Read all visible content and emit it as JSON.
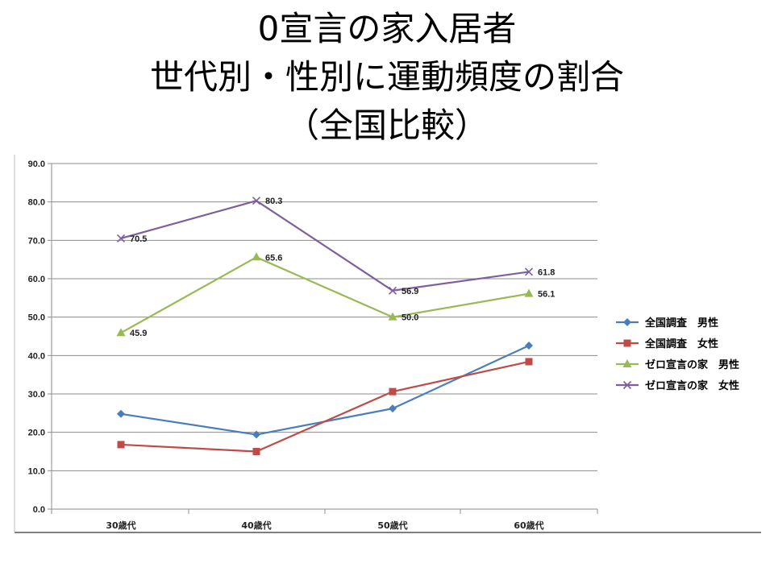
{
  "slide": {
    "title_lines": [
      "0宣言の家入居者",
      "世代別・性別に運動頻度の割合",
      "（全国比較）"
    ]
  },
  "chart_data": {
    "type": "line",
    "title": "0宣言の家入居者 世代別・性別に運動頻度の割合（全国比較）",
    "categories": [
      "30歳代",
      "40歳代",
      "50歳代",
      "60歳代"
    ],
    "ylim": [
      0,
      90
    ],
    "yticks": [
      "0.0",
      "10.0",
      "20.0",
      "30.0",
      "40.0",
      "50.0",
      "60.0",
      "70.0",
      "80.0",
      "90.0"
    ],
    "grid": true,
    "legend_position": "right",
    "series": [
      {
        "name": "全国調査　男性",
        "values": [
          24.8,
          19.4,
          26.2,
          42.6
        ],
        "color": "#4a7ebb",
        "marker": "diamond",
        "labels": false
      },
      {
        "name": "全国調査　女性",
        "values": [
          16.8,
          15.0,
          30.6,
          38.4
        ],
        "color": "#be4b48",
        "marker": "square",
        "labels": false
      },
      {
        "name": "ゼロ宣言の家　男性",
        "values": [
          45.9,
          65.6,
          50.0,
          56.1
        ],
        "color": "#98b954",
        "marker": "triangle",
        "labels": true
      },
      {
        "name": "ゼロ宣言の家　女性",
        "values": [
          70.5,
          80.3,
          56.9,
          61.8
        ],
        "color": "#7d5fa0",
        "marker": "x",
        "labels": true
      }
    ]
  }
}
